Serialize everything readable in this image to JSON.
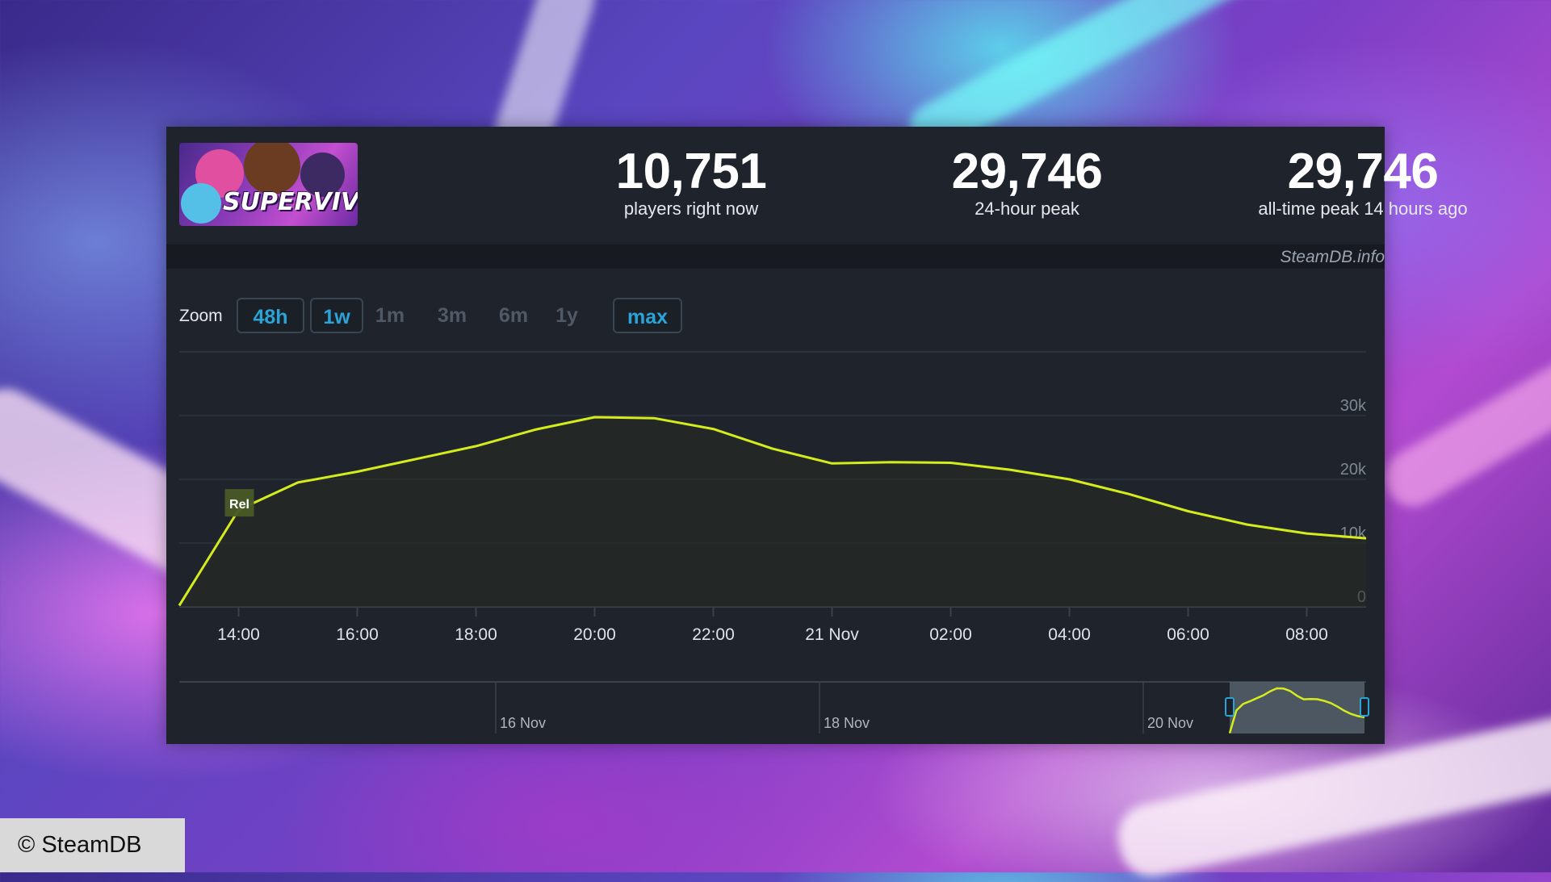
{
  "game": {
    "capsule_text": "SUPERVIVE"
  },
  "stats": [
    {
      "value": "10,751",
      "label": "players right now"
    },
    {
      "value": "29,746",
      "label": "24-hour peak"
    },
    {
      "value": "29,746",
      "label": "all-time peak 14 hours ago"
    }
  ],
  "credit": "SteamDB.info",
  "zoom": {
    "label": "Zoom",
    "options": [
      {
        "label": "48h",
        "active": true
      },
      {
        "label": "1w",
        "active": true
      },
      {
        "label": "1m",
        "active": false
      },
      {
        "label": "3m",
        "active": false
      },
      {
        "label": "6m",
        "active": false
      },
      {
        "label": "1y",
        "active": false
      },
      {
        "label": "max",
        "active": true
      }
    ]
  },
  "chart_data": {
    "type": "line",
    "xlabel": "",
    "ylabel": "",
    "ylim": [
      0,
      30000
    ],
    "yticks": [
      "0",
      "10k",
      "20k",
      "30k"
    ],
    "ytick_values": [
      0,
      10000,
      20000,
      30000
    ],
    "xtick_labels": [
      "14:00",
      "16:00",
      "18:00",
      "20:00",
      "22:00",
      "21 Nov",
      "02:00",
      "04:00",
      "06:00",
      "08:00"
    ],
    "xtick_hours": [
      1,
      3,
      5,
      7,
      9,
      11,
      13,
      15,
      17,
      19
    ],
    "x_hours": [
      0,
      1,
      2,
      3,
      4,
      5,
      6,
      7,
      8,
      9,
      10,
      11,
      12,
      13,
      14,
      15,
      16,
      17,
      18,
      19,
      20
    ],
    "series": [
      {
        "values": [
          200,
          15200,
          19500,
          21200,
          23200,
          25200,
          27800,
          29746,
          29600,
          27900,
          24800,
          22500,
          22700,
          22600,
          21500,
          20000,
          17700,
          15000,
          12900,
          11500,
          10751
        ],
        "color": "#d4ec1c"
      }
    ],
    "annotation": {
      "label": "Rel",
      "x_hour": 1
    },
    "navigator": {
      "labels": [
        "16 Nov",
        "18 Nov",
        "20 Nov"
      ]
    },
    "grid": true
  }
}
